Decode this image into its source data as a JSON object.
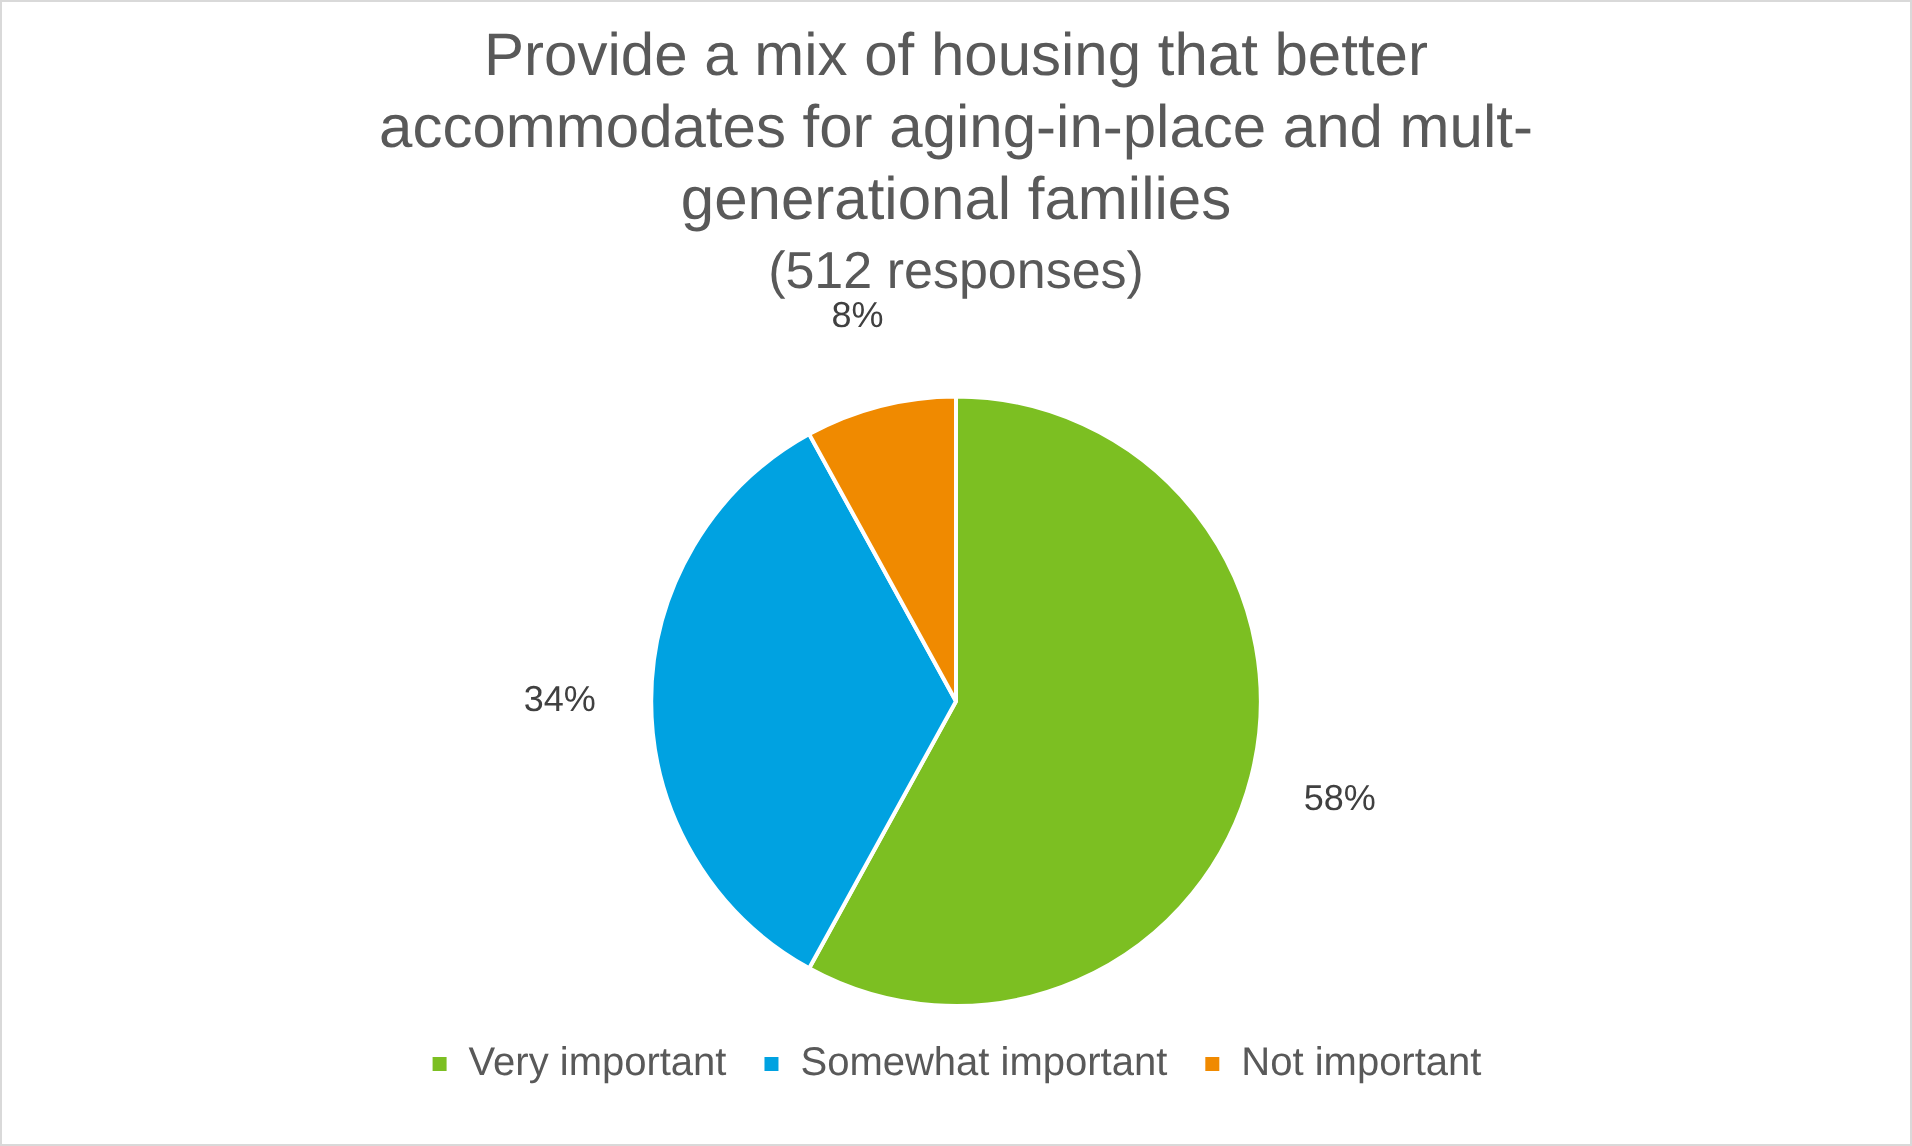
{
  "chart_data": {
    "type": "pie",
    "title": "Provide a mix of housing that better accommodates for aging-in-place and mult-generational families",
    "subtitle": "(512 responses)",
    "categories": [
      "Very important",
      "Somewhat important",
      "Not important"
    ],
    "values": [
      58,
      34,
      8
    ],
    "colors": [
      "#7cbf22",
      "#00a2e1",
      "#f08a00"
    ],
    "value_labels": [
      "58%",
      "34%",
      "8%"
    ],
    "legend": "bottom"
  }
}
